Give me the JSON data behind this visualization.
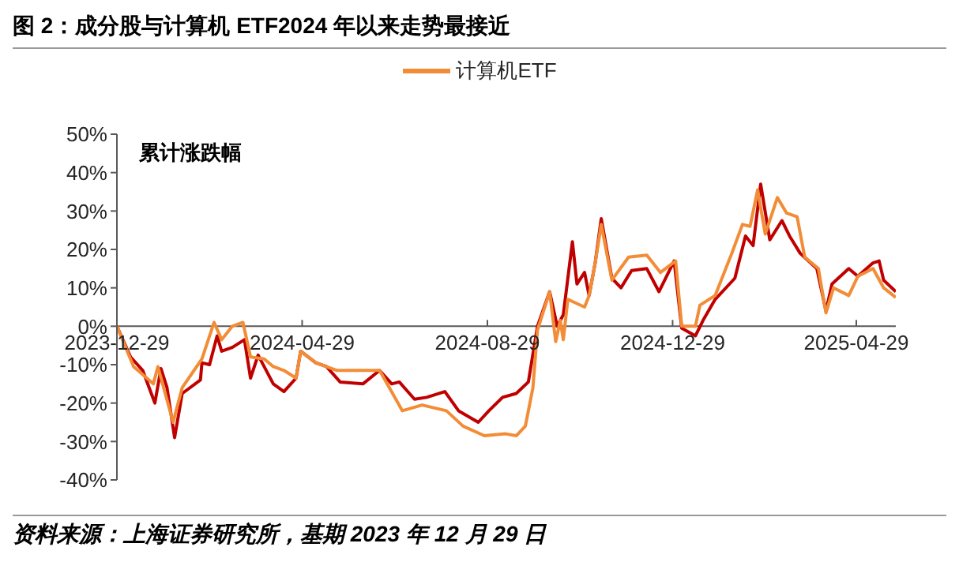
{
  "chart_data": {
    "type": "line",
    "title": "图 2：成分股与计算机 ETF2024 年以来走势最接近",
    "ylabel": "累计涨跌幅",
    "annotations": [
      "资料来源：上海证券研究所，基期 2023 年 12 月 29 日"
    ],
    "xlim": [
      "2023-12-29",
      "2025-05-25"
    ],
    "xticks": [
      "2023-12-29",
      "2024-04-29",
      "2024-08-29",
      "2024-12-29",
      "2025-04-29"
    ],
    "ylim": [
      -40,
      50
    ],
    "yticks": [
      {
        "value": -40,
        "label": "-40%"
      },
      {
        "value": -30,
        "label": "-30%"
      },
      {
        "value": -20,
        "label": "-20%"
      },
      {
        "value": -10,
        "label": "-10%"
      },
      {
        "value": 0,
        "label": "0%"
      },
      {
        "value": 10,
        "label": "10%"
      },
      {
        "value": 20,
        "label": "20%"
      },
      {
        "value": 30,
        "label": "30%"
      },
      {
        "value": 40,
        "label": "40%"
      },
      {
        "value": 50,
        "label": "50%"
      }
    ],
    "grid": false,
    "legend": "top",
    "marker": "none",
    "line_style": "solid",
    "series": [
      {
        "color": "#c00000",
        "x": [
          "2023-12-29",
          "2024-01-07",
          "2024-01-15",
          "2024-01-23",
          "2024-01-27",
          "2024-01-31",
          "2024-02-05",
          "2024-02-10",
          "2024-02-22",
          "2024-02-23",
          "2024-02-28",
          "2024-03-04",
          "2024-03-07",
          "2024-03-14",
          "2024-03-22",
          "2024-03-26",
          "2024-03-31",
          "2024-04-10",
          "2024-04-17",
          "2024-04-25",
          "2024-04-28",
          "2024-05-08",
          "2024-05-15",
          "2024-05-24",
          "2024-06-08",
          "2024-06-19",
          "2024-06-27",
          "2024-07-02",
          "2024-07-12",
          "2024-07-20",
          "2024-08-01",
          "2024-08-10",
          "2024-08-23",
          "2024-08-30",
          "2024-09-08",
          "2024-09-17",
          "2024-09-25",
          "2024-10-01",
          "2024-10-09",
          "2024-10-14",
          "2024-10-18",
          "2024-10-24",
          "2024-10-27",
          "2024-11-01",
          "2024-11-04",
          "2024-11-08",
          "2024-11-12",
          "2024-11-19",
          "2024-11-25",
          "2024-12-02",
          "2024-12-12",
          "2024-12-20",
          "2024-12-30",
          "2025-01-04",
          "2025-01-13",
          "2025-01-18",
          "2025-01-26",
          "2025-02-08",
          "2025-02-15",
          "2025-02-20",
          "2025-02-25",
          "2025-03-03",
          "2025-03-11",
          "2025-03-16",
          "2025-03-23",
          "2025-04-03",
          "2025-04-09",
          "2025-04-13",
          "2025-04-24",
          "2025-04-30",
          "2025-05-10",
          "2025-05-14",
          "2025-05-17",
          "2025-05-25"
        ],
        "values": [
          0,
          -8,
          -11.5,
          -20,
          -11,
          -16,
          -29,
          -17.5,
          -14,
          -9.5,
          -10,
          -2.5,
          -6.5,
          -5.5,
          -3.5,
          -13.5,
          -7.5,
          -15,
          -17,
          -13.5,
          -6.5,
          -9.5,
          -10.5,
          -14.5,
          -15,
          -11.5,
          -15,
          -14.5,
          -19,
          -18.5,
          -17,
          -22,
          -25,
          -22,
          -18.5,
          -17.5,
          -14.5,
          0,
          9,
          0,
          3,
          22,
          11,
          14,
          8,
          16.5,
          28,
          12.5,
          10,
          14.5,
          15,
          9,
          17,
          -0.5,
          -2.5,
          1.5,
          7,
          12.5,
          23.5,
          21,
          37,
          22.5,
          27.5,
          23.5,
          19,
          15,
          4,
          11,
          15,
          13,
          16.5,
          17,
          12,
          9
        ]
      },
      {
        "name": "计算机ETF",
        "color": "#f28c36",
        "x": [
          "2023-12-29",
          "2024-01-09",
          "2024-01-22",
          "2024-01-25",
          "2024-02-04",
          "2024-02-10",
          "2024-02-23",
          "2024-03-02",
          "2024-03-07",
          "2024-03-14",
          "2024-03-21",
          "2024-03-26",
          "2024-04-04",
          "2024-04-10",
          "2024-04-17",
          "2024-04-25",
          "2024-04-28",
          "2024-05-08",
          "2024-05-22",
          "2024-06-19",
          "2024-07-04",
          "2024-07-17",
          "2024-08-02",
          "2024-08-13",
          "2024-08-27",
          "2024-09-10",
          "2024-09-17",
          "2024-09-23",
          "2024-09-28",
          "2024-10-01",
          "2024-10-09",
          "2024-10-13",
          "2024-10-16",
          "2024-10-18",
          "2024-10-21",
          "2024-11-01",
          "2024-11-04",
          "2024-11-08",
          "2024-11-12",
          "2024-11-19",
          "2024-11-30",
          "2024-12-12",
          "2024-12-21",
          "2024-12-31",
          "2025-01-04",
          "2025-01-13",
          "2025-01-16",
          "2025-01-26",
          "2025-02-06",
          "2025-02-13",
          "2025-02-18",
          "2025-02-23",
          "2025-02-28",
          "2025-03-08",
          "2025-03-14",
          "2025-03-21",
          "2025-03-26",
          "2025-04-04",
          "2025-04-09",
          "2025-04-14",
          "2025-04-24",
          "2025-04-30",
          "2025-05-10",
          "2025-05-17",
          "2025-05-25"
        ],
        "values": [
          0,
          -10.5,
          -15,
          -10.5,
          -25,
          -16,
          -8.5,
          1,
          -3.5,
          0,
          1,
          -8,
          -8.5,
          -10.5,
          -11.5,
          -13.5,
          -6.5,
          -9.5,
          -11.5,
          -11.5,
          -22,
          -20.5,
          -22,
          -26,
          -28.5,
          -28,
          -28.5,
          -26,
          -16,
          -1,
          9,
          -4,
          1.5,
          -3.5,
          7,
          5,
          8,
          16.5,
          26.5,
          12,
          18,
          18.5,
          14,
          17,
          0,
          0,
          5.5,
          8,
          19,
          26.5,
          26,
          35.5,
          24,
          33.5,
          29.5,
          28.5,
          18,
          15,
          3.5,
          10,
          8,
          13,
          15,
          10,
          7.5
        ]
      }
    ]
  }
}
